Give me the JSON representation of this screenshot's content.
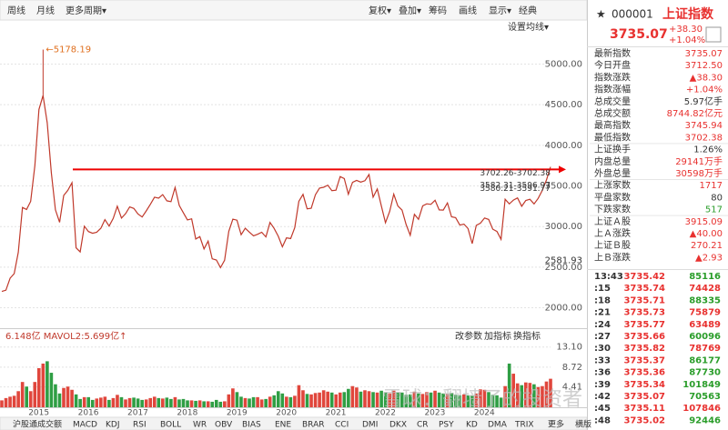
{
  "toolbar": {
    "left": [
      "周线",
      "月线",
      "更多周期▾"
    ],
    "right": [
      "复权▾",
      "叠加▾",
      "筹码",
      "画线",
      "显示▾",
      "经典"
    ]
  },
  "chart_data": [
    {
      "type": "line",
      "settings_button": "设置均线▾",
      "color": "#c0392b",
      "categories": [
        null,
        null,
        null,
        null,
        null,
        null,
        "2015",
        null,
        null,
        null,
        null,
        null,
        null,
        null,
        null,
        null,
        null,
        null,
        "2016",
        null,
        null,
        null,
        null,
        null,
        null,
        null,
        null,
        null,
        null,
        null,
        "2017",
        null,
        null,
        null,
        null,
        null,
        null,
        null,
        null,
        null,
        null,
        null,
        "2018",
        null,
        null,
        null,
        null,
        null,
        null,
        null,
        null,
        null,
        null,
        null,
        "2019",
        null,
        null,
        null,
        null,
        null,
        null,
        null,
        null,
        null,
        null,
        null,
        "2020",
        null,
        null,
        null,
        null,
        null,
        null,
        null,
        null,
        null,
        null,
        null,
        "2021",
        null,
        null,
        null,
        null,
        null,
        null,
        null,
        null,
        null,
        null,
        null,
        "2022",
        null,
        null,
        null,
        null,
        null,
        null,
        null,
        null,
        null,
        null,
        null,
        "2023",
        null,
        null,
        null,
        null,
        null,
        null,
        null,
        null,
        null,
        null,
        null,
        "2024",
        null,
        null,
        null,
        null,
        null,
        null,
        null,
        null,
        null,
        null,
        null,
        null,
        null,
        null,
        null,
        null,
        null,
        null,
        null
      ],
      "values": [
        2201,
        2217,
        2364,
        2420,
        2683,
        3235,
        3210,
        3310,
        3748,
        4441,
        4612,
        4277,
        3664,
        3206,
        3053,
        3383,
        3445,
        3539,
        2738,
        2688,
        3004,
        2938,
        2917,
        2930,
        2979,
        3085,
        3005,
        3100,
        3250,
        3104,
        3159,
        3242,
        3223,
        3155,
        3117,
        3192,
        3273,
        3361,
        3349,
        3393,
        3317,
        3307,
        3481,
        3259,
        3169,
        3082,
        3095,
        2847,
        2876,
        2725,
        2821,
        2603,
        2588,
        2494,
        2585,
        2941,
        3091,
        3078,
        2899,
        2979,
        2932,
        2886,
        2905,
        2929,
        2872,
        3050,
        2977,
        2880,
        2750,
        2860,
        2852,
        2985,
        3310,
        3396,
        3218,
        3225,
        3392,
        3473,
        3483,
        3509,
        3442,
        3447,
        3615,
        3591,
        3397,
        3544,
        3568,
        3547,
        3564,
        3640,
        3361,
        3462,
        3252,
        3047,
        3186,
        3399,
        3253,
        3202,
        3024,
        2893,
        3151,
        3089,
        3255,
        3280,
        3273,
        3323,
        3205,
        3202,
        3291,
        3120,
        3110,
        3018,
        3030,
        2975,
        2789,
        3015,
        3041,
        3105,
        3087,
        2967,
        2939,
        2842,
        3336,
        3279,
        3326,
        3352,
        3250,
        3321,
        3336,
        3279,
        3347,
        3444,
        3573,
        3735
      ],
      "ylim": [
        1760,
        5520
      ],
      "yticks": [
        {
          "value": 2000,
          "label": "2000.00"
        },
        {
          "value": 2500,
          "label": "2500.00"
        },
        {
          "value": 3000,
          "label": "3000.00"
        },
        {
          "value": 3500,
          "label": "3500.00"
        },
        {
          "value": 4000,
          "label": "4000.00"
        },
        {
          "value": 4500,
          "label": "4500.00"
        },
        {
          "value": 5000,
          "label": "5000.00"
        }
      ],
      "grid": true,
      "peak": {
        "value": 5178.19,
        "label": "←5178.19"
      },
      "axis_marker": 2581.93,
      "reference_lines": [
        {
          "value": 3702.26,
          "label": "3702.26-3702.38"
        },
        {
          "value": 3582.31,
          "label": "3582.31-3596.97"
        },
        {
          "value": 3580.21,
          "label": "3580.21-3591.77"
        }
      ]
    },
    {
      "type": "bar",
      "label": "6.148亿 MAVOL2:5.699亿↑",
      "buttons": [
        "改参数",
        "加指标",
        "换指标"
      ],
      "up_color": "#e0463c",
      "down_color": "#2f9e44",
      "values": [
        1.5,
        2,
        2.3,
        2.5,
        3.5,
        5.5,
        4.5,
        3.5,
        5.5,
        8.5,
        9.5,
        10,
        7.5,
        5,
        3,
        4.2,
        4.5,
        3.8,
        2.8,
        1.8,
        2.2,
        2.2,
        1.6,
        1.9,
        2.1,
        2.3,
        1.6,
        2,
        2.7,
        2.2,
        1.7,
        2,
        2.1,
        1.9,
        1.6,
        1.7,
        2,
        2.3,
        2,
        1.9,
        2.1,
        1.8,
        2.2,
        1.7,
        1.8,
        1.5,
        1.5,
        1.4,
        1.5,
        1.3,
        1.3,
        1.2,
        1.6,
        1.2,
        1.3,
        2.8,
        4.1,
        3.3,
        2.3,
        2,
        1.9,
        2.2,
        2.2,
        1.7,
        1.8,
        2.3,
        2.6,
        3.5,
        3,
        2.3,
        2.2,
        2.5,
        4.8,
        3.7,
        2.9,
        2.8,
        3.1,
        3.2,
        3.7,
        3.4,
        3.2,
        2.8,
        3.2,
        3.3,
        4,
        4.6,
        4.3,
        3.4,
        3.7,
        3.5,
        3.3,
        3.2,
        3.6,
        3.2,
        3,
        3.6,
        3.2,
        3.2,
        2.7,
        2.8,
        3.4,
        3,
        2.9,
        3.3,
        3.2,
        3.6,
        3.2,
        3,
        2.9,
        3.1,
        2.7,
        2.6,
        2.8,
        2.6,
        2.6,
        3,
        3.9,
        3.8,
        3.3,
        2.7,
        2.6,
        2.1,
        4.6,
        9.5,
        7.3,
        5.2,
        4.8,
        5.4,
        5.3,
        5,
        4.4,
        4.6,
        5.6,
        6.2
      ],
      "ylim": [
        0,
        16.6
      ],
      "yticks": [
        {
          "value": 13.1,
          "label": "13.10"
        },
        8.72,
        4.41
      ]
    }
  ],
  "indicator_tabs": [
    "沪股通成交额",
    "MACD",
    "KDJ",
    "RSI",
    "BOLL",
    "WR",
    "OBV",
    "BIAS",
    "ENE",
    "BRAR",
    "CCI",
    "DMI",
    "DKX",
    "CR",
    "PSY",
    "KD",
    "DMA",
    "TRIX",
    "更多",
    "横版"
  ],
  "watermark": "雪球：翻墙了的投资者",
  "quote": {
    "code": "000001",
    "name": "上证指数",
    "price": "3735.07",
    "change": "+38.30",
    "change_pct": "+1.04%",
    "stats": [
      [
        "最新指数",
        "3735.07"
      ],
      [
        "今日开盘",
        "3712.50"
      ],
      [
        "指数涨跌",
        "▲38.30"
      ],
      [
        "指数涨幅",
        "+1.04%"
      ],
      [
        "总成交量",
        "5.97亿手"
      ],
      [
        "总成交额",
        "8744.82亿元"
      ],
      [
        "最高指数",
        "3745.94"
      ],
      [
        "最低指数",
        "3702.38"
      ],
      [
        "上证换手",
        "1.26%"
      ],
      [
        "内盘总量",
        "29141万手"
      ],
      [
        "外盘总量",
        "30598万手"
      ],
      [
        "上涨家数",
        "1717"
      ],
      [
        "平盘家数",
        "80"
      ],
      [
        "下跌家数",
        "517"
      ],
      [
        "上证Ａ股",
        "3915.09"
      ],
      [
        "上Ａ涨跌",
        "▲40.00"
      ],
      [
        "上证Ｂ股",
        "270.21"
      ],
      [
        "上Ｂ涨跌",
        "▲2.93"
      ]
    ],
    "ticks": [
      [
        "13:43",
        "3735.42",
        "85116"
      ],
      [
        ":15",
        "3735.74",
        "74428"
      ],
      [
        ":18",
        "3735.71",
        "88335"
      ],
      [
        ":21",
        "3735.73",
        "75879"
      ],
      [
        ":24",
        "3735.77",
        "63489"
      ],
      [
        ":27",
        "3735.66",
        "60096"
      ],
      [
        ":30",
        "3735.82",
        "78769"
      ],
      [
        ":33",
        "3735.37",
        "86177"
      ],
      [
        ":36",
        "3735.36",
        "87730"
      ],
      [
        ":39",
        "3735.34",
        "101849"
      ],
      [
        ":42",
        "3735.07",
        "70563"
      ],
      [
        ":45",
        "3735.11",
        "107846"
      ],
      [
        ":48",
        "3735.02",
        "92446"
      ]
    ]
  }
}
